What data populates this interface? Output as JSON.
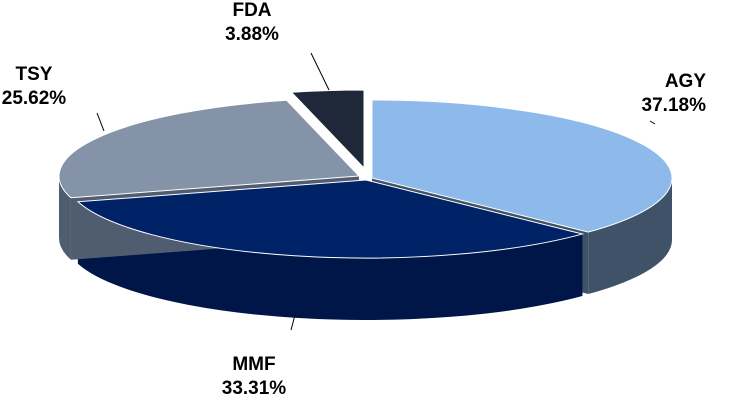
{
  "chart_data": {
    "type": "pie",
    "style": "3d-exploded",
    "slices": [
      {
        "label": "AGY",
        "value": 37.18,
        "display": "37.18%",
        "color": "#8DB9EB",
        "side_color": "#3F5268"
      },
      {
        "label": "MMF",
        "value": 33.31,
        "display": "33.31%",
        "color": "#002266",
        "side_color": "#001548"
      },
      {
        "label": "TSY",
        "value": 25.62,
        "display": "25.62%",
        "color": "#8593A8",
        "side_color": "#505C70"
      },
      {
        "label": "FDA",
        "value": 3.88,
        "display": "3.88%",
        "color": "#1E2838",
        "side_color": "#101620"
      }
    ]
  }
}
